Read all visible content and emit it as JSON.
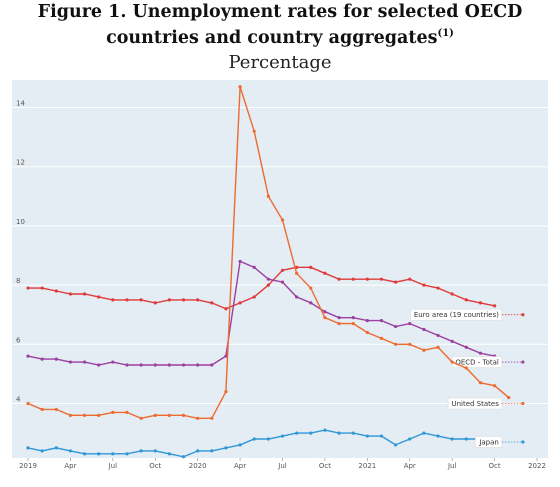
{
  "title_line1": "Figure 1. Unemployment rates for selected OECD",
  "title_line2": "countries and country aggregates",
  "title_footnote": "(1)",
  "subtitle": "Percentage",
  "chart_data": {
    "type": "line",
    "x": [
      "2019-01",
      "2019-02",
      "2019-03",
      "2019-04",
      "2019-05",
      "2019-06",
      "2019-07",
      "2019-08",
      "2019-09",
      "2019-10",
      "2019-11",
      "2019-12",
      "2020-01",
      "2020-02",
      "2020-03",
      "2020-04",
      "2020-05",
      "2020-06",
      "2020-07",
      "2020-08",
      "2020-09",
      "2020-10",
      "2020-11",
      "2020-12",
      "2021-01",
      "2021-02",
      "2021-03",
      "2021-04",
      "2021-05",
      "2021-06",
      "2021-07",
      "2021-08",
      "2021-09",
      "2021-10",
      "2021-11",
      "2021-12"
    ],
    "x_ticks": [
      "2019",
      "Apr",
      "Jul",
      "Oct",
      "2020",
      "Apr",
      "Jul",
      "Oct",
      "2021",
      "Apr",
      "Jul",
      "Oct",
      "2022"
    ],
    "ylim": [
      2,
      15.5
    ],
    "y_ticks": [
      4,
      6,
      8,
      10,
      12,
      14
    ],
    "grid": true,
    "series": [
      {
        "name": "Euro area (19 countries)",
        "color": "#e03a3a",
        "values": [
          7.9,
          7.9,
          7.8,
          7.7,
          7.7,
          7.6,
          7.5,
          7.5,
          7.5,
          7.4,
          7.5,
          7.5,
          7.5,
          7.4,
          7.2,
          7.4,
          7.6,
          8.0,
          8.5,
          8.6,
          8.6,
          8.4,
          8.2,
          8.2,
          8.2,
          8.2,
          8.1,
          8.2,
          8.0,
          7.9,
          7.7,
          7.5,
          7.4,
          7.3,
          null,
          7.0
        ]
      },
      {
        "name": "OECD - Total",
        "color": "#9b3fa0",
        "values": [
          5.6,
          5.5,
          5.5,
          5.4,
          5.4,
          5.3,
          5.4,
          5.3,
          5.3,
          5.3,
          5.3,
          5.3,
          5.3,
          5.3,
          5.6,
          8.8,
          8.6,
          8.2,
          8.1,
          7.6,
          7.4,
          7.1,
          6.9,
          6.9,
          6.8,
          6.8,
          6.6,
          6.7,
          6.5,
          6.3,
          6.1,
          5.9,
          5.7,
          5.6,
          null,
          5.4
        ]
      },
      {
        "name": "United States",
        "color": "#ee6a30",
        "values": [
          4.0,
          3.8,
          3.8,
          3.6,
          3.6,
          3.6,
          3.7,
          3.7,
          3.5,
          3.6,
          3.6,
          3.6,
          3.5,
          3.5,
          4.4,
          14.7,
          13.2,
          11.0,
          10.2,
          8.4,
          7.9,
          6.9,
          6.7,
          6.7,
          6.4,
          6.2,
          6.0,
          6.0,
          5.8,
          5.9,
          5.4,
          5.2,
          4.7,
          4.6,
          4.2,
          4.0
        ]
      },
      {
        "name": "Japan",
        "color": "#2f97d6",
        "values": [
          2.5,
          2.4,
          2.5,
          2.4,
          2.3,
          2.3,
          2.3,
          2.3,
          2.4,
          2.4,
          2.3,
          2.2,
          2.4,
          2.4,
          2.5,
          2.6,
          2.8,
          2.8,
          2.9,
          3.0,
          3.0,
          3.1,
          3.0,
          3.0,
          2.9,
          2.9,
          2.6,
          2.8,
          3.0,
          2.9,
          2.8,
          2.8,
          2.8,
          2.7,
          null,
          2.7
        ]
      }
    ]
  }
}
